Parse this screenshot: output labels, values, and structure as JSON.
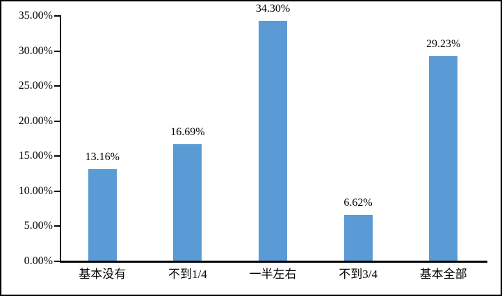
{
  "chart_data": {
    "type": "bar",
    "title": "",
    "xlabel": "",
    "ylabel": "",
    "categories": [
      "基本没有",
      "不到1/4",
      "一半左右",
      "不到3/4",
      "基本全部"
    ],
    "values": [
      13.16,
      16.69,
      34.3,
      6.62,
      29.23
    ],
    "data_labels": [
      "13.16%",
      "16.69%",
      "34.30%",
      "6.62%",
      "29.23%"
    ],
    "y_tick_labels": [
      "0.00%",
      "5.00%",
      "10.00%",
      "15.00%",
      "20.00%",
      "25.00%",
      "30.00%",
      "35.00%"
    ],
    "y_tick_values": [
      0,
      5,
      10,
      15,
      20,
      25,
      30,
      35
    ],
    "ylim": [
      0,
      35
    ],
    "grid": false,
    "legend": false,
    "bar_color": "#5B9BD5",
    "axis_color": "#000000",
    "text_color": "#000000",
    "background_color": "#FFFFFF"
  }
}
